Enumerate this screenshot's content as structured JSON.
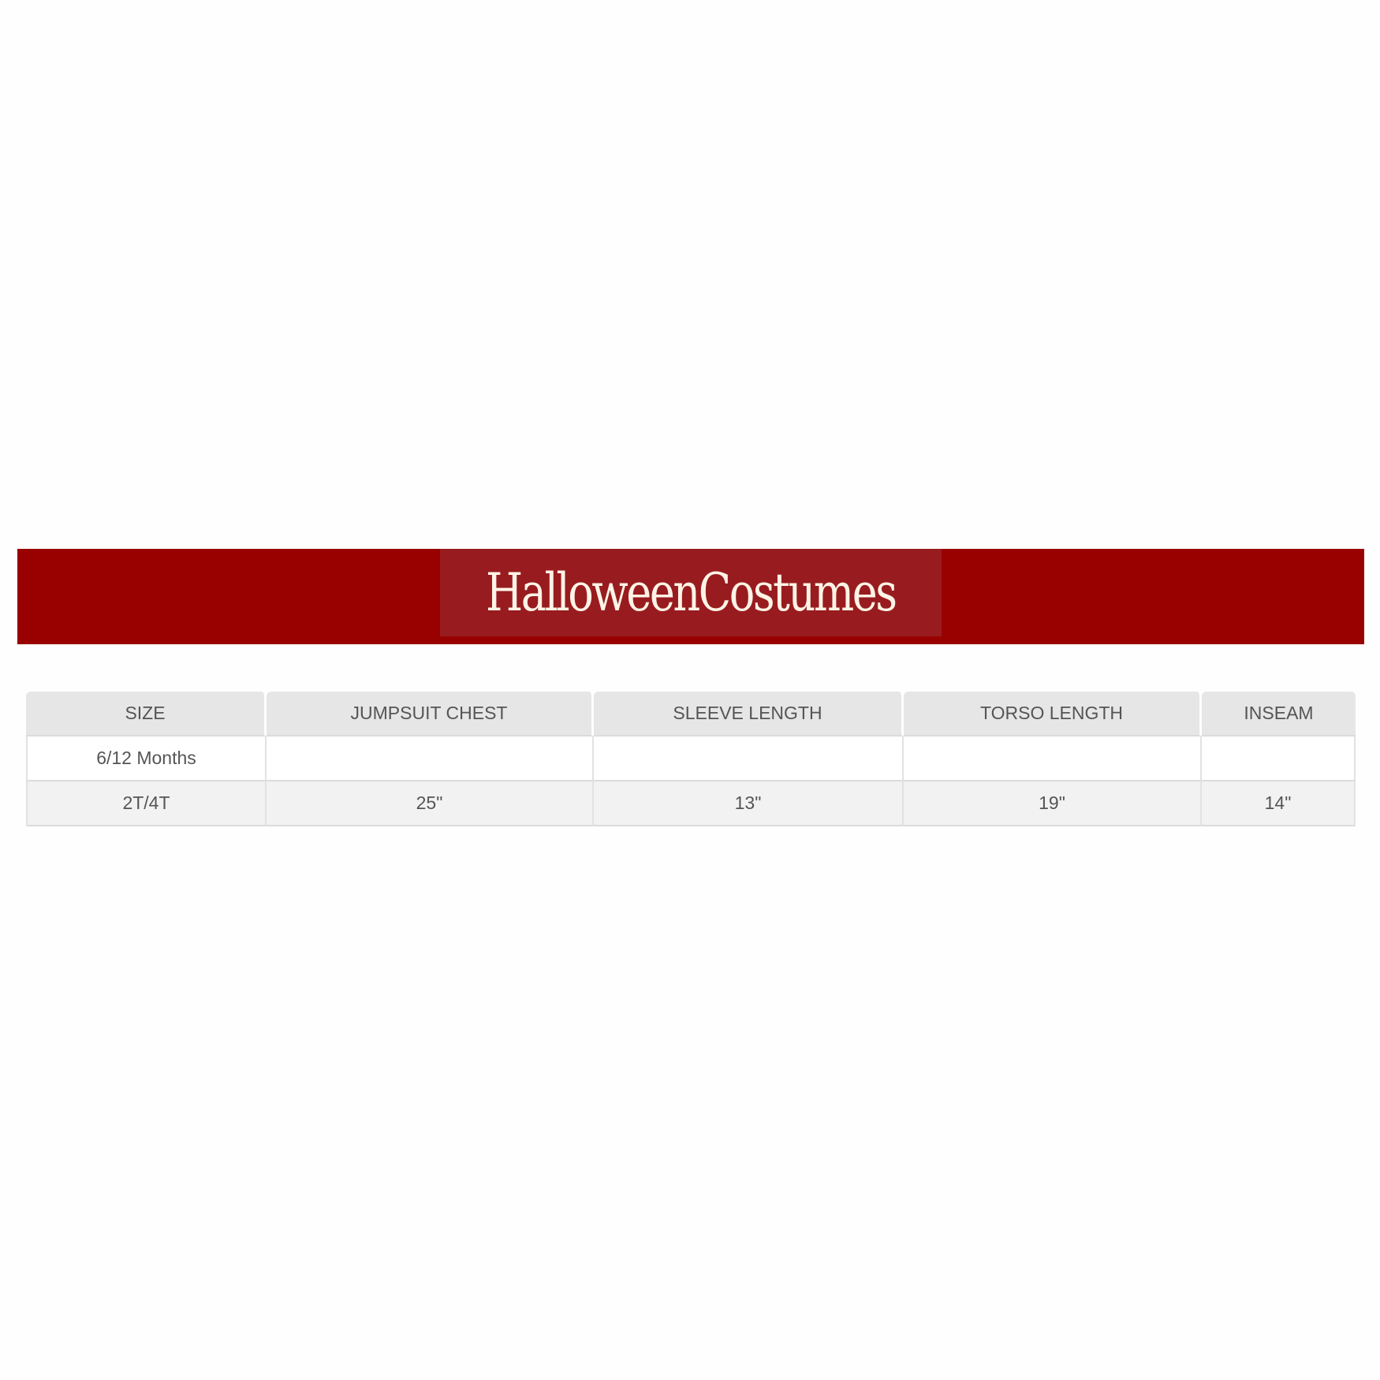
{
  "brand": {
    "logo_text": "HalloweenCostumes",
    "banner_color": "#990000",
    "logo_bg_color": "#981c1f"
  },
  "size_chart": {
    "headers": [
      "SIZE",
      "JUMPSUIT CHEST",
      "SLEEVE LENGTH",
      "TORSO LENGTH",
      "INSEAM"
    ],
    "rows": [
      [
        "6/12 Months",
        "",
        "",
        "",
        ""
      ],
      [
        "2T/4T",
        "25\"",
        "13\"",
        "19\"",
        "14\""
      ]
    ]
  }
}
